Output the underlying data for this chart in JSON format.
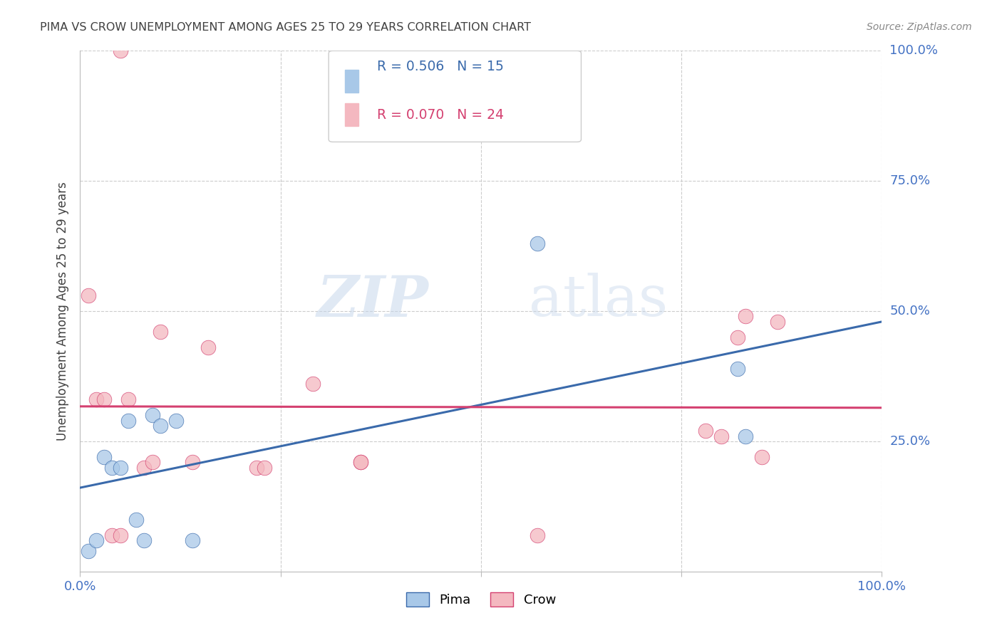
{
  "title": "PIMA VS CROW UNEMPLOYMENT AMONG AGES 25 TO 29 YEARS CORRELATION CHART",
  "source": "Source: ZipAtlas.com",
  "ylabel": "Unemployment Among Ages 25 to 29 years",
  "xlim": [
    0,
    1.0
  ],
  "ylim": [
    0,
    1.0
  ],
  "pima_x": [
    0.01,
    0.02,
    0.03,
    0.04,
    0.05,
    0.06,
    0.07,
    0.08,
    0.09,
    0.1,
    0.12,
    0.57,
    0.82,
    0.83,
    0.14
  ],
  "pima_y": [
    0.04,
    0.06,
    0.22,
    0.2,
    0.2,
    0.29,
    0.1,
    0.06,
    0.3,
    0.28,
    0.29,
    0.63,
    0.39,
    0.26,
    0.06
  ],
  "crow_x": [
    0.01,
    0.02,
    0.03,
    0.04,
    0.05,
    0.06,
    0.08,
    0.09,
    0.05,
    0.1,
    0.14,
    0.16,
    0.22,
    0.23,
    0.29,
    0.35,
    0.35,
    0.57,
    0.78,
    0.8,
    0.82,
    0.83,
    0.85,
    0.87
  ],
  "crow_y": [
    0.53,
    0.33,
    0.33,
    0.07,
    0.07,
    0.33,
    0.2,
    0.21,
    1.0,
    0.46,
    0.21,
    0.43,
    0.2,
    0.2,
    0.36,
    0.21,
    0.21,
    0.07,
    0.27,
    0.26,
    0.45,
    0.49,
    0.22,
    0.48
  ],
  "pima_R": 0.506,
  "pima_N": 15,
  "crow_R": 0.07,
  "crow_N": 24,
  "pima_color": "#a8c8e8",
  "crow_color": "#f4b8c0",
  "pima_line_color": "#3a6aab",
  "crow_line_color": "#d44070",
  "watermark_zip": "ZIP",
  "watermark_atlas": "atlas",
  "background_color": "#ffffff",
  "grid_color": "#cccccc",
  "title_color": "#404040",
  "axis_label_color": "#404040",
  "tick_color": "#4472c4",
  "legend_box_color": "#e8e8e8"
}
